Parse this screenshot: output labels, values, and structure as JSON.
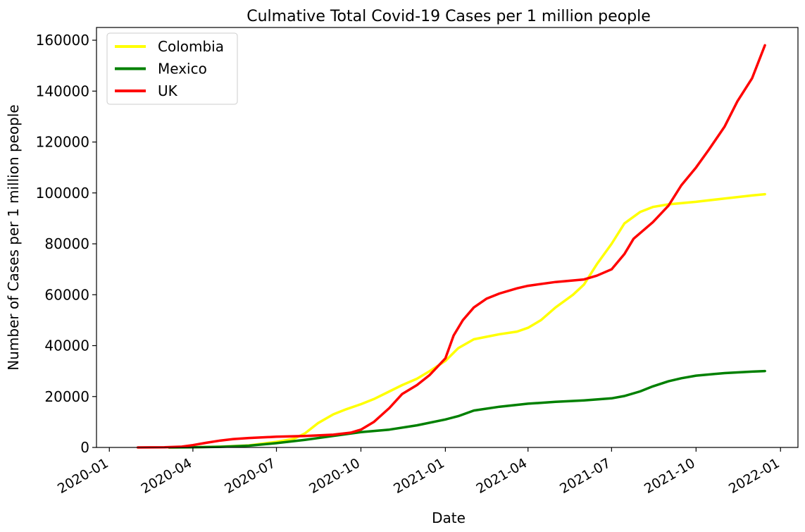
{
  "chart_data": {
    "type": "line",
    "title": "Culmative Total Covid-19 Cases per 1 million people",
    "xlabel": "Date",
    "ylabel": "Number of Cases per 1 million people",
    "xlim": [
      "2019-12-18",
      "2022-01-20"
    ],
    "ylim": [
      0,
      165000
    ],
    "x_ticks": [
      "2020-01-01",
      "2020-04-01",
      "2020-07-01",
      "2020-10-01",
      "2021-01-01",
      "2021-04-01",
      "2021-07-01",
      "2021-10-01",
      "2022-01-01"
    ],
    "x_tick_labels": [
      "2020-01",
      "2020-04",
      "2020-07",
      "2020-10",
      "2021-01",
      "2021-04",
      "2021-07",
      "2021-10",
      "2022-01"
    ],
    "y_ticks": [
      0,
      20000,
      40000,
      60000,
      80000,
      100000,
      120000,
      140000,
      160000
    ],
    "y_tick_labels": [
      "0",
      "20000",
      "40000",
      "60000",
      "80000",
      "100000",
      "120000",
      "140000",
      "160000"
    ],
    "legend_position": "top-left",
    "grid": false,
    "series": [
      {
        "name": "Colombia",
        "color": "#ffff00",
        "points": [
          [
            "2020-03-06",
            0
          ],
          [
            "2020-04-01",
            50
          ],
          [
            "2020-05-01",
            300
          ],
          [
            "2020-06-01",
            800
          ],
          [
            "2020-07-01",
            2200
          ],
          [
            "2020-07-20",
            3400
          ],
          [
            "2020-08-01",
            5500
          ],
          [
            "2020-08-15",
            9500
          ],
          [
            "2020-09-01",
            13000
          ],
          [
            "2020-09-15",
            15000
          ],
          [
            "2020-10-01",
            17000
          ],
          [
            "2020-10-15",
            19000
          ],
          [
            "2020-11-01",
            22000
          ],
          [
            "2020-11-15",
            24500
          ],
          [
            "2020-12-01",
            27000
          ],
          [
            "2020-12-15",
            30000
          ],
          [
            "2021-01-01",
            34000
          ],
          [
            "2021-01-15",
            39000
          ],
          [
            "2021-02-01",
            42500
          ],
          [
            "2021-02-15",
            43500
          ],
          [
            "2021-03-01",
            44500
          ],
          [
            "2021-03-20",
            45500
          ],
          [
            "2021-04-01",
            47000
          ],
          [
            "2021-04-15",
            50000
          ],
          [
            "2021-05-01",
            55000
          ],
          [
            "2021-05-20",
            60000
          ],
          [
            "2021-06-01",
            64000
          ],
          [
            "2021-06-15",
            72000
          ],
          [
            "2021-07-01",
            80000
          ],
          [
            "2021-07-15",
            88000
          ],
          [
            "2021-08-01",
            92500
          ],
          [
            "2021-08-15",
            94500
          ],
          [
            "2021-09-01",
            95500
          ],
          [
            "2021-10-01",
            96500
          ],
          [
            "2021-11-01",
            97800
          ],
          [
            "2021-12-01",
            99000
          ],
          [
            "2021-12-15",
            99500
          ]
        ]
      },
      {
        "name": "Mexico",
        "color": "#008000",
        "points": [
          [
            "2020-03-06",
            0
          ],
          [
            "2020-04-01",
            50
          ],
          [
            "2020-05-01",
            250
          ],
          [
            "2020-06-01",
            700
          ],
          [
            "2020-07-01",
            1700
          ],
          [
            "2020-08-01",
            3000
          ],
          [
            "2020-09-01",
            4500
          ],
          [
            "2020-10-01",
            6000
          ],
          [
            "2020-11-01",
            7000
          ],
          [
            "2020-12-01",
            8700
          ],
          [
            "2021-01-01",
            11000
          ],
          [
            "2021-01-15",
            12300
          ],
          [
            "2021-02-01",
            14500
          ],
          [
            "2021-03-01",
            16000
          ],
          [
            "2021-04-01",
            17200
          ],
          [
            "2021-05-01",
            17900
          ],
          [
            "2021-06-01",
            18500
          ],
          [
            "2021-07-01",
            19300
          ],
          [
            "2021-07-15",
            20200
          ],
          [
            "2021-08-01",
            22000
          ],
          [
            "2021-08-15",
            24000
          ],
          [
            "2021-09-01",
            26000
          ],
          [
            "2021-09-15",
            27200
          ],
          [
            "2021-10-01",
            28200
          ],
          [
            "2021-11-01",
            29200
          ],
          [
            "2021-12-01",
            29800
          ],
          [
            "2021-12-15",
            30000
          ]
        ]
      },
      {
        "name": "UK",
        "color": "#ff0000",
        "points": [
          [
            "2020-02-01",
            0
          ],
          [
            "2020-03-01",
            50
          ],
          [
            "2020-03-20",
            300
          ],
          [
            "2020-04-01",
            900
          ],
          [
            "2020-04-15",
            1800
          ],
          [
            "2020-05-01",
            2700
          ],
          [
            "2020-05-15",
            3300
          ],
          [
            "2020-06-01",
            3700
          ],
          [
            "2020-07-01",
            4200
          ],
          [
            "2020-08-01",
            4500
          ],
          [
            "2020-09-01",
            5000
          ],
          [
            "2020-09-20",
            5800
          ],
          [
            "2020-10-01",
            7000
          ],
          [
            "2020-10-15",
            10000
          ],
          [
            "2020-11-01",
            15500
          ],
          [
            "2020-11-15",
            21000
          ],
          [
            "2020-12-01",
            24500
          ],
          [
            "2020-12-15",
            28500
          ],
          [
            "2021-01-01",
            35000
          ],
          [
            "2021-01-10",
            44000
          ],
          [
            "2021-01-20",
            50000
          ],
          [
            "2021-02-01",
            55000
          ],
          [
            "2021-02-15",
            58500
          ],
          [
            "2021-03-01",
            60500
          ],
          [
            "2021-03-20",
            62500
          ],
          [
            "2021-04-01",
            63500
          ],
          [
            "2021-05-01",
            65000
          ],
          [
            "2021-06-01",
            66000
          ],
          [
            "2021-06-15",
            67500
          ],
          [
            "2021-07-01",
            70000
          ],
          [
            "2021-07-15",
            76000
          ],
          [
            "2021-07-25",
            82000
          ],
          [
            "2021-08-15",
            88500
          ],
          [
            "2021-09-01",
            95000
          ],
          [
            "2021-09-15",
            103000
          ],
          [
            "2021-10-01",
            110000
          ],
          [
            "2021-10-15",
            117000
          ],
          [
            "2021-11-01",
            126000
          ],
          [
            "2021-11-15",
            136000
          ],
          [
            "2021-12-01",
            145000
          ],
          [
            "2021-12-15",
            158000
          ]
        ]
      }
    ]
  }
}
